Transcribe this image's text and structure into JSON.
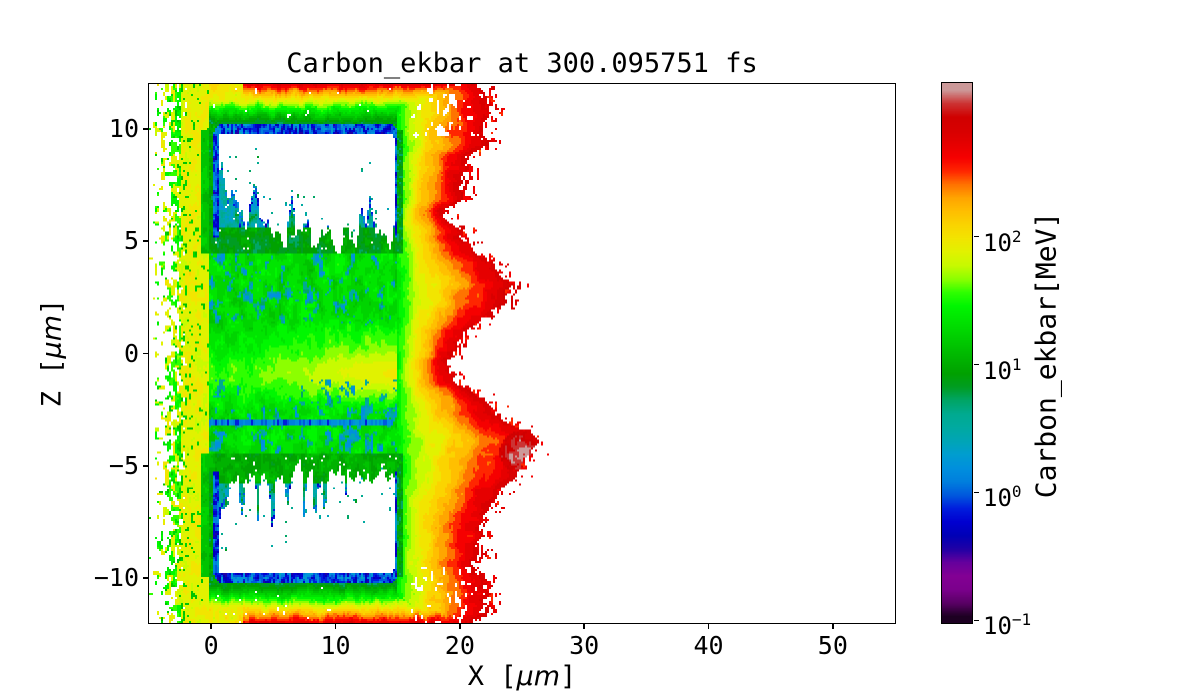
{
  "figure": {
    "background": "#ffffff"
  },
  "chart_data": {
    "type": "heatmap",
    "title": "Carbon_ekbar at 300.095751 fs",
    "time_fs": 300.095751,
    "xlabel": {
      "pre": "X [",
      "unit": "μm",
      "post": "]"
    },
    "ylabel": {
      "pre": "Z [",
      "unit": "μm",
      "post": "]"
    },
    "x_range": [
      -5,
      55
    ],
    "z_range": [
      -12,
      12
    ],
    "x_ticks": [
      0,
      10,
      20,
      30,
      40,
      50
    ],
    "z_ticks": [
      10,
      5,
      0,
      -5,
      -10
    ],
    "grid": false,
    "colorbar": {
      "label": "Carbon_ekbar[MeV]",
      "scale": "log",
      "tick_exponents": [
        2,
        1,
        0,
        -1
      ],
      "vmin_log10": -1.02,
      "vmax_log10": 3.2,
      "levels": 40,
      "colormap_name": "nipy_spectral",
      "colormap_anchors": [
        [
          0.0,
          "#000000"
        ],
        [
          0.05,
          "#770088"
        ],
        [
          0.1,
          "#880099"
        ],
        [
          0.15,
          "#0000AA"
        ],
        [
          0.2,
          "#0000DD"
        ],
        [
          0.25,
          "#0077DD"
        ],
        [
          0.3,
          "#0099DD"
        ],
        [
          0.35,
          "#00AAAA"
        ],
        [
          0.4,
          "#00AA88"
        ],
        [
          0.45,
          "#009900"
        ],
        [
          0.5,
          "#00BB00"
        ],
        [
          0.55,
          "#00DD00"
        ],
        [
          0.6,
          "#00FF00"
        ],
        [
          0.65,
          "#BBFF00"
        ],
        [
          0.7,
          "#EEEE00"
        ],
        [
          0.75,
          "#FFCC00"
        ],
        [
          0.8,
          "#FF9900"
        ],
        [
          0.85,
          "#FF0000"
        ],
        [
          0.9,
          "#DD0000"
        ],
        [
          0.95,
          "#CC0000"
        ],
        [
          1.0,
          "#CCCCCC"
        ]
      ]
    },
    "features": {
      "description": "Log-scaled 2D map of mean carbon kinetic energy (ekbar) from a laser-plasma simulation at t = 300.095751 fs. Two cold target blocks (x 0-15 um; z 4.4-10 um and z -10 to -4.4 um) appear as white windows outlined in dark blue with cyan/teal instability fingers growing from the mid-plane channel. The heated slab ramps green-yellow-orange into a ragged red high-energy front at x ~17-26 um with bulges near z ~3 and z ~-4, a pale-grey hottest spot near (24.9, -4.4) um, and yellow/green speckle at the left edge (x < 0).",
      "target_blocks": [
        {
          "x0": 0.35,
          "x1": 14.95,
          "z0": 4.4,
          "z1": 10.0
        },
        {
          "x0": 0.35,
          "x1": 14.95,
          "z0": -10.0,
          "z1": -4.4
        }
      ],
      "red_edge": [
        [
          12,
          21.8
        ],
        [
          10.5,
          22.0
        ],
        [
          9,
          21.5
        ],
        [
          7.5,
          20.0
        ],
        [
          6.2,
          19.2
        ],
        [
          5,
          20.5
        ],
        [
          4,
          22.5
        ],
        [
          3,
          23.7
        ],
        [
          2,
          22.8
        ],
        [
          1,
          20.2
        ],
        [
          0,
          18.9
        ],
        [
          -1,
          19.6
        ],
        [
          -2,
          21.5
        ],
        [
          -3,
          23.5
        ],
        [
          -4,
          26.2
        ],
        [
          -5,
          25.6
        ],
        [
          -6,
          23.5
        ],
        [
          -7.2,
          21.8
        ],
        [
          -8.5,
          21.0
        ],
        [
          -9.5,
          21.6
        ],
        [
          -10.5,
          22.6
        ],
        [
          -11.2,
          22.2
        ],
        [
          -12,
          21.8
        ]
      ],
      "hot_spot": {
        "x": 24.9,
        "z": -4.4,
        "rx": 1.7,
        "rz": 0.95,
        "log_mev": 3.12
      },
      "channel_blue_line_z": -3.05,
      "yellow_streak_z": -0.9,
      "left_speckle_x_start": -5
    }
  }
}
